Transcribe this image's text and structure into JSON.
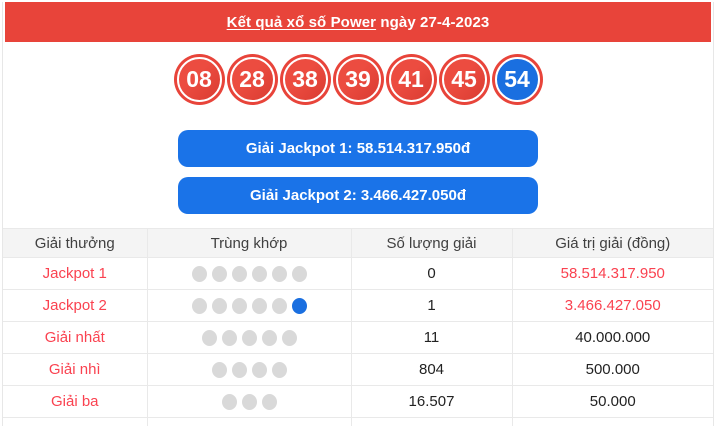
{
  "header": {
    "title_link": "Kết quả xổ số Power",
    "title_rest": " ngày 27-4-2023"
  },
  "balls": [
    {
      "number": "08",
      "color": "red"
    },
    {
      "number": "28",
      "color": "red"
    },
    {
      "number": "38",
      "color": "red"
    },
    {
      "number": "39",
      "color": "red"
    },
    {
      "number": "41",
      "color": "red"
    },
    {
      "number": "45",
      "color": "red"
    },
    {
      "number": "54",
      "color": "blue"
    }
  ],
  "jackpot_buttons": [
    {
      "label": "Giải Jackpot 1: 58.514.317.950đ"
    },
    {
      "label": "Giải Jackpot 2: 3.466.427.050đ"
    }
  ],
  "table": {
    "headers": [
      "Giải thưởng",
      "Trùng khớp",
      "Số lượng giải",
      "Giá trị giải (đồng)"
    ],
    "rows": [
      {
        "prize": "Jackpot 1",
        "dots_gray": 6,
        "dots_blue": 0,
        "count": "0",
        "value": "58.514.317.950",
        "value_red": true
      },
      {
        "prize": "Jackpot 2",
        "dots_gray": 5,
        "dots_blue": 1,
        "count": "1",
        "value": "3.466.427.050",
        "value_red": true
      },
      {
        "prize": "Giải nhất",
        "dots_gray": 5,
        "dots_blue": 0,
        "count": "11",
        "value": "40.000.000",
        "value_red": false
      },
      {
        "prize": "Giải nhì",
        "dots_gray": 4,
        "dots_blue": 0,
        "count": "804",
        "value": "500.000",
        "value_red": false
      },
      {
        "prize": "Giải ba",
        "dots_gray": 3,
        "dots_blue": 0,
        "count": "16.507",
        "value": "50.000",
        "value_red": false
      }
    ]
  },
  "colors": {
    "red": "#e8443a",
    "blue": "#1a6fe0",
    "button-blue": "#1a73e8",
    "text-red": "#fa4250",
    "dot-gray": "#d9d9d9",
    "header-bg": "#f4f4f4"
  }
}
